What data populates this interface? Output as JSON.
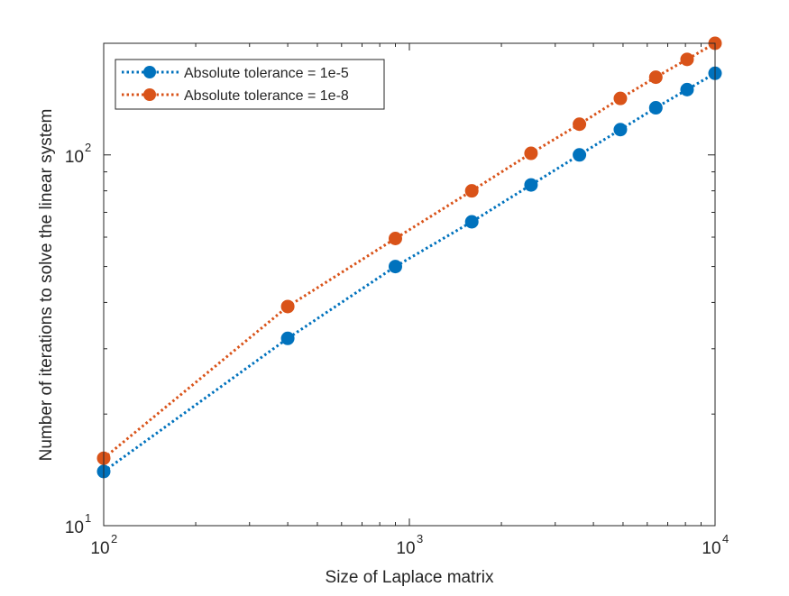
{
  "chart_data": {
    "type": "line",
    "title": "",
    "xlabel": "Size of Laplace matrix",
    "ylabel": "Number of iterations to solve the linear system",
    "x_scale": "log",
    "y_scale": "log",
    "xlim": [
      100,
      10000
    ],
    "ylim": [
      10,
      200
    ],
    "grid": false,
    "legend_position": "top-left",
    "x_ticks": [
      {
        "value": 100,
        "base": "10",
        "exp": "2"
      },
      {
        "value": 1000,
        "base": "10",
        "exp": "3"
      },
      {
        "value": 10000,
        "base": "10",
        "exp": "4"
      }
    ],
    "y_ticks": [
      {
        "value": 10,
        "base": "10",
        "exp": "1"
      },
      {
        "value": 100,
        "base": "10",
        "exp": "2"
      }
    ],
    "x": [
      100,
      400,
      900,
      1600,
      2500,
      3600,
      4900,
      6400,
      8100,
      10000
    ],
    "series": [
      {
        "name": "Absolute tolerance = 1e-5",
        "color": "#0072BD",
        "line_style": "dotted",
        "marker": "circle",
        "values": [
          14,
          32,
          50,
          66,
          83,
          100,
          117,
          134,
          150,
          166
        ]
      },
      {
        "name": "Absolute tolerance = 1e-8",
        "color": "#D95319",
        "line_style": "dotted",
        "marker": "circle",
        "values": [
          15.2,
          39,
          59.5,
          80,
          101,
          121,
          142,
          162,
          181,
          200
        ]
      }
    ]
  }
}
